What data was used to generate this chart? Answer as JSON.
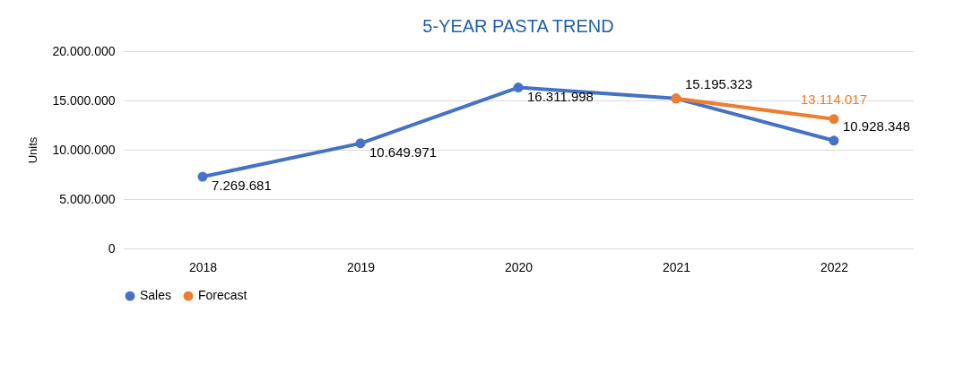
{
  "chart_data": {
    "type": "line",
    "title": "5-YEAR PASTA TREND",
    "ylabel": "Units",
    "categories": [
      "2018",
      "2019",
      "2020",
      "2021",
      "2022"
    ],
    "series": [
      {
        "name": "Sales",
        "color": "#4472c4",
        "values": [
          7269681,
          10649971,
          16311998,
          15195323,
          10928348
        ],
        "value_labels": [
          "7.269.681",
          "10.649.971",
          "16.311.998",
          "15.195.323",
          "10.928.348"
        ]
      },
      {
        "name": "Forecast",
        "color": "#ed7d31",
        "values": [
          null,
          null,
          null,
          15195323,
          13114017
        ],
        "value_labels": [
          null,
          null,
          null,
          null,
          "13.114.017"
        ]
      }
    ],
    "ylim": [
      0,
      20000000
    ],
    "yticks": [
      {
        "value": 0,
        "label": "0"
      },
      {
        "value": 5000000,
        "label": "5.000.000"
      },
      {
        "value": 10000000,
        "label": "10.000.000"
      },
      {
        "value": 15000000,
        "label": "15.000.000"
      },
      {
        "value": 20000000,
        "label": "20.000.000"
      }
    ],
    "grid": "y",
    "legend": "bottom",
    "marker": "circle"
  }
}
